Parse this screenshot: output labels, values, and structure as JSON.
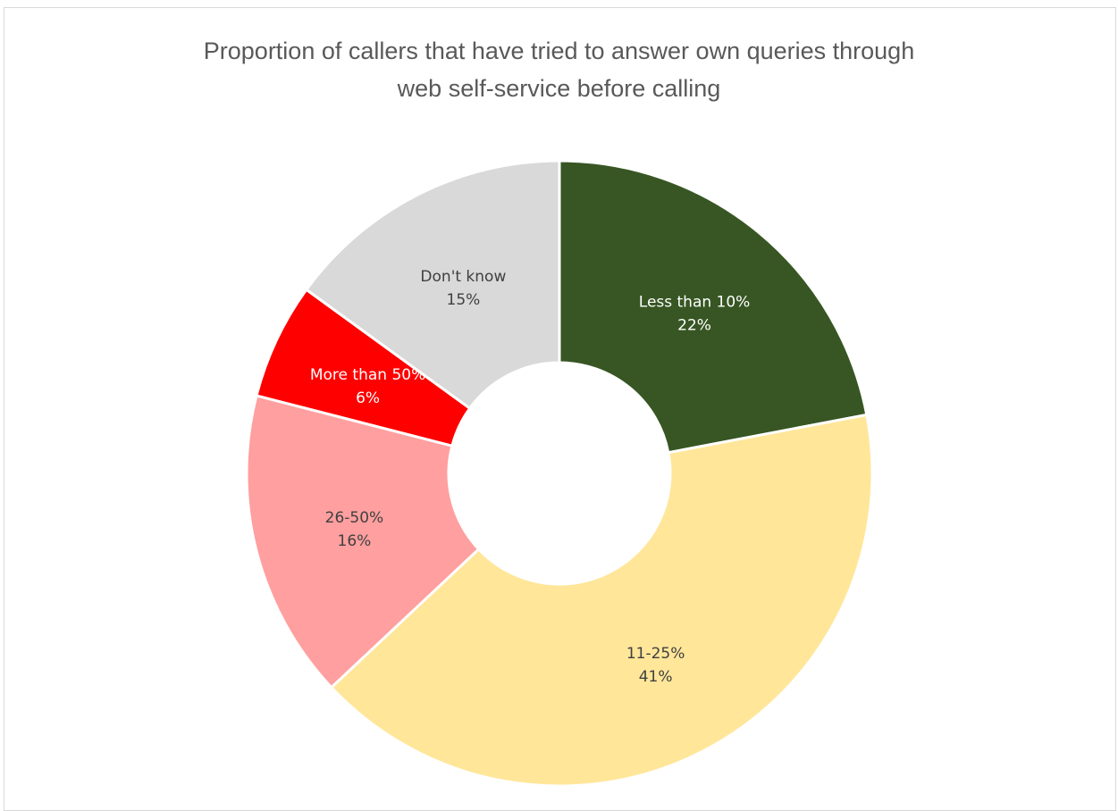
{
  "chart_data": {
    "type": "pie",
    "variant": "donut",
    "title_lines": [
      "Proportion of callers that have tried to answer own queries through",
      "web self-service before calling"
    ],
    "legend": "none",
    "slices": [
      {
        "label": "Less than 10%",
        "value_text": "22%",
        "value": 22,
        "color": "#375623",
        "label_color": "#ffffff"
      },
      {
        "label": "11-25%",
        "value_text": "41%",
        "value": 41,
        "color": "#FFE699",
        "label_color": "#404040"
      },
      {
        "label": "26-50%",
        "value_text": "16%",
        "value": 16,
        "color": "#FF9F9F",
        "label_color": "#404040"
      },
      {
        "label": "More than 50%",
        "value_text": "6%",
        "value": 6,
        "color": "#FF0000",
        "label_color": "#ffffff"
      },
      {
        "label": "Don't know",
        "value_text": "15%",
        "value": 15,
        "color": "#D9D9D9",
        "label_color": "#404040"
      }
    ]
  }
}
